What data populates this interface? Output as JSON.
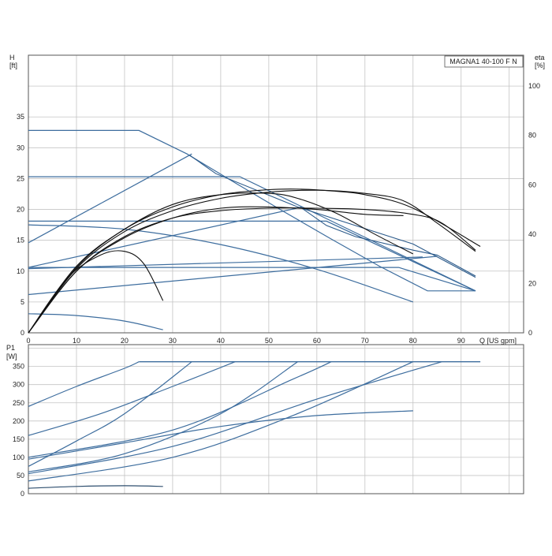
{
  "chart_data": [
    {
      "type": "line",
      "title": "MAGNA1 40-100 F N",
      "ylabel_left": [
        "H",
        "[ft]"
      ],
      "ylabel_right": [
        "eta",
        "[%]"
      ],
      "xlabel": "Q [US gpm]",
      "xlim": [
        0,
        103
      ],
      "ylim": [
        0,
        45
      ],
      "y2lim": [
        0,
        112.5
      ],
      "x_ticks": [
        0,
        10,
        20,
        30,
        40,
        50,
        60,
        70,
        80,
        90
      ],
      "y_ticks": [
        0,
        5,
        10,
        15,
        20,
        25,
        30,
        35
      ],
      "y2_ticks": [
        0,
        20,
        40,
        60,
        80,
        100
      ],
      "grid": true,
      "head_curves": [
        {
          "x": [
            0,
            23,
            33,
            43,
            53,
            63,
            73,
            83,
            93
          ],
          "y": [
            32.8,
            32.8,
            29.0,
            24.3,
            19.7,
            15.2,
            10.8,
            6.8,
            6.8
          ]
        },
        {
          "x": [
            0,
            44,
            93
          ],
          "y": [
            25.3,
            25.3,
            6.8
          ]
        },
        {
          "x": [
            0,
            62,
            93
          ],
          "y": [
            18.1,
            18.1,
            6.8
          ]
        },
        {
          "x": [
            0,
            20,
            40,
            60,
            80
          ],
          "y": [
            17.5,
            16.8,
            14.3,
            10.3,
            5.0
          ]
        },
        {
          "x": [
            0,
            77,
            93
          ],
          "y": [
            10.6,
            10.6,
            6.8
          ]
        },
        {
          "x": [
            0,
            10,
            20,
            28
          ],
          "y": [
            3.1,
            2.8,
            1.9,
            0.5
          ]
        }
      ],
      "eta_curves": [
        {
          "x": [
            0,
            34
          ],
          "y": [
            36.5,
            72.5
          ]
        },
        {
          "x": [
            0,
            57
          ],
          "y": [
            26.5,
            51.0
          ]
        },
        {
          "x": [
            0,
            85
          ],
          "y": [
            15.5,
            31.0
          ]
        },
        {
          "x": [
            0,
            82
          ],
          "y": [
            26.0,
            30.7
          ]
        }
      ],
      "eta_cusps": [
        {
          "x": [
            33.5,
            39,
            56,
            80,
            93
          ],
          "y": [
            72.0,
            64.5,
            51.0,
            36.0,
            22.5
          ]
        },
        {
          "x": [
            56.5,
            62,
            68,
            80,
            85,
            93
          ],
          "y": [
            51.0,
            43.5,
            39.0,
            33.5,
            31.5,
            23.0
          ]
        }
      ],
      "efficiency_curves": [
        {
          "x": [
            0,
            10,
            20,
            30,
            40,
            50,
            57,
            63,
            70,
            80,
            94
          ],
          "y": [
            0,
            26.5,
            42.0,
            51.0,
            56.0,
            58.0,
            58.2,
            57.5,
            56.0,
            50.5,
            35.0
          ]
        },
        {
          "x": [
            0,
            10,
            20,
            30,
            40,
            50,
            60,
            70,
            78,
            85,
            93
          ],
          "y": [
            0,
            26.0,
            41.0,
            49.5,
            54.5,
            57.0,
            57.8,
            56.5,
            53.5,
            44.5,
            33.0
          ]
        },
        {
          "x": [
            0,
            10,
            20,
            30,
            40,
            50,
            60,
            70,
            80,
            86,
            93
          ],
          "y": [
            0,
            25.0,
            39.0,
            46.5,
            49.5,
            50.5,
            50.5,
            50.0,
            48.0,
            44.5,
            33.5
          ]
        },
        {
          "x": [
            0,
            10,
            20,
            30,
            40,
            50,
            56,
            64,
            72,
            80
          ],
          "y": [
            0,
            27.0,
            42.0,
            52.0,
            56.0,
            56.5,
            54.5,
            48.5,
            40.0,
            32.0
          ]
        },
        {
          "x": [
            0,
            10,
            20,
            30,
            40,
            50,
            60,
            70,
            78
          ],
          "y": [
            0,
            25.0,
            38.5,
            46.5,
            50.5,
            51.0,
            50.0,
            48.0,
            47.5
          ]
        },
        {
          "x": [
            0,
            8,
            15,
            20,
            24,
            28
          ],
          "y": [
            0,
            22.0,
            31.5,
            33.0,
            28.0,
            13.0
          ]
        }
      ]
    },
    {
      "type": "line",
      "ylabel": [
        "P1",
        "[W]"
      ],
      "xlim": [
        0,
        103
      ],
      "ylim": [
        0,
        410
      ],
      "y_ticks": [
        0,
        50,
        100,
        150,
        200,
        250,
        300,
        350
      ],
      "grid": true,
      "power_curves": [
        {
          "x": [
            0,
            10,
            20,
            23
          ],
          "y": [
            240,
            295,
            345,
            363
          ]
        },
        {
          "x": [
            0,
            15,
            30,
            43
          ],
          "y": [
            160,
            220,
            295,
            363
          ]
        },
        {
          "x": [
            0,
            10,
            20,
            34
          ],
          "y": [
            75,
            145,
            220,
            363
          ]
        },
        {
          "x": [
            0,
            20,
            40,
            56
          ],
          "y": [
            60,
            110,
            220,
            363
          ]
        },
        {
          "x": [
            0,
            30,
            55,
            63
          ],
          "y": [
            100,
            175,
            315,
            363
          ]
        },
        {
          "x": [
            0,
            30,
            55,
            80
          ],
          "y": [
            35,
            100,
            215,
            363
          ]
        },
        {
          "x": [
            0,
            30,
            60,
            86
          ],
          "y": [
            55,
            130,
            260,
            363
          ]
        },
        {
          "x": [
            0,
            20,
            40,
            60,
            80
          ],
          "y": [
            95,
            140,
            185,
            215,
            228
          ]
        },
        {
          "x": [
            0,
            10,
            20,
            28
          ],
          "y": [
            15,
            20,
            22,
            20
          ]
        }
      ],
      "power_limit": {
        "x": [
          23,
          94
        ],
        "y": 363
      }
    }
  ]
}
